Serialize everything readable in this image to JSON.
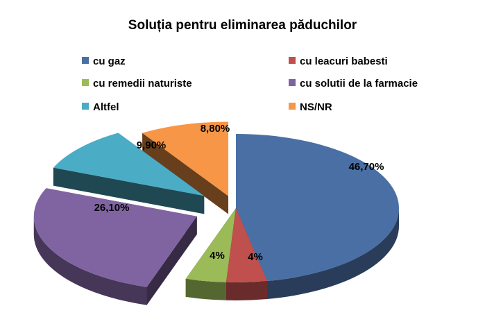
{
  "chart_data": {
    "type": "pie",
    "title": "Soluția  pentru eliminarea  păduchilor",
    "legend_position": "top",
    "slices": [
      {
        "label": "cu gaz",
        "value": 46.7,
        "display": "46,70%",
        "color": "#4a6fa5"
      },
      {
        "label": "cu leacuri babesti",
        "value": 4,
        "display": "4%",
        "color": "#c0504d"
      },
      {
        "label": "cu remedii naturiste",
        "value": 4,
        "display": "4%",
        "color": "#9bbb59"
      },
      {
        "label": "cu solutii de la farmacie",
        "value": 26.1,
        "display": "26,10%",
        "color": "#8064a2"
      },
      {
        "label": "Altfel",
        "value": 9.9,
        "display": "9,90%",
        "color": "#4bacc6"
      },
      {
        "label": "NS/NR",
        "value": 8.8,
        "display": "8,80%",
        "color": "#f79646"
      }
    ]
  }
}
